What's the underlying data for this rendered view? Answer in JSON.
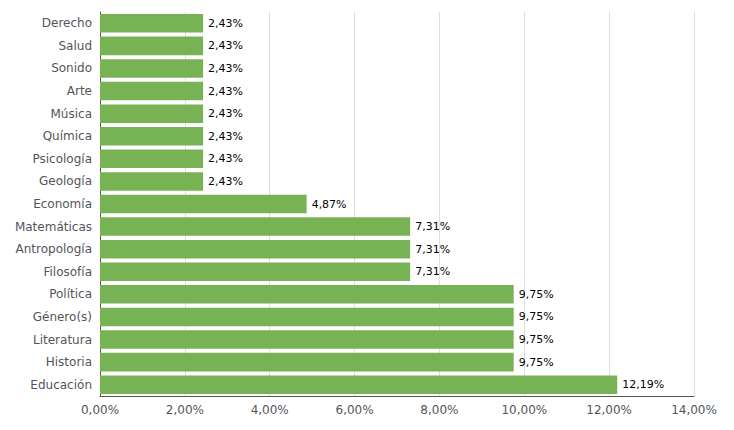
{
  "chart_data": {
    "type": "bar",
    "orientation": "horizontal",
    "categories": [
      "Educación",
      "Historia",
      "Literatura",
      "Género(s)",
      "Política",
      "Filosofía",
      "Antropología",
      "Matemáticas",
      "Economía",
      "Geología",
      "Psicología",
      "Química",
      "Música",
      "Arte",
      "Sonido",
      "Salud",
      "Derecho"
    ],
    "values": [
      12.19,
      9.75,
      9.75,
      9.75,
      9.75,
      7.31,
      7.31,
      7.31,
      4.87,
      2.43,
      2.43,
      2.43,
      2.43,
      2.43,
      2.43,
      2.43,
      2.43
    ],
    "value_labels": [
      "12,19%",
      "9,75%",
      "9,75%",
      "9,75%",
      "9,75%",
      "7,31%",
      "7,31%",
      "7,31%",
      "4,87%",
      "2,43%",
      "2,43%",
      "2,43%",
      "2,43%",
      "2,43%",
      "2,43%",
      "2,43%",
      "2,43%"
    ],
    "data_labels": true,
    "color": "#77b255",
    "xlim": [
      0,
      14
    ],
    "xticks": [
      {
        "value": 0,
        "label": "0,00%"
      },
      {
        "value": 2,
        "label": "2,00%"
      },
      {
        "value": 4,
        "label": "4,00%"
      },
      {
        "value": 6,
        "label": "6,00%"
      },
      {
        "value": 8,
        "label": "8,00%"
      },
      {
        "value": 10,
        "label": "10,00%"
      },
      {
        "value": 12,
        "label": "12,00%"
      },
      {
        "value": 14,
        "label": "14,00%"
      }
    ],
    "grid": true
  }
}
